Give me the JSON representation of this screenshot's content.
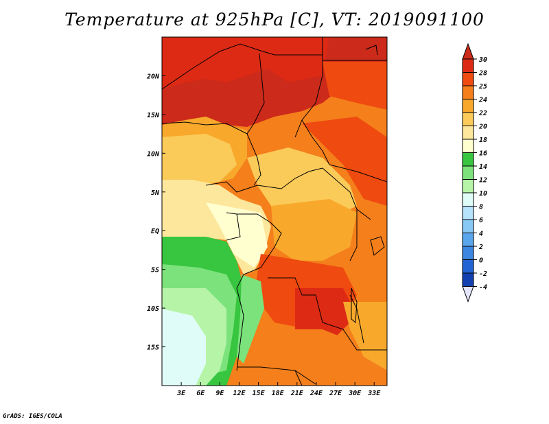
{
  "title": "Temperature at 925hPa [C], VT: 2019091100",
  "footer": "GrADS: IGES/COLA",
  "map": {
    "x_ticks": [
      "3E",
      "6E",
      "9E",
      "12E",
      "15E",
      "18E",
      "21E",
      "24E",
      "27E",
      "30E",
      "33E"
    ],
    "y_ticks": [
      "20N",
      "15N",
      "10N",
      "5N",
      "EQ",
      "5S",
      "10S",
      "15S"
    ],
    "lon_range": [
      0,
      35
    ],
    "lat_range": [
      -20,
      25
    ]
  },
  "colorbar": {
    "labels": [
      "30",
      "28",
      "25",
      "24",
      "22",
      "20",
      "18",
      "16",
      "14",
      "12",
      "10",
      "8",
      "6",
      "4",
      "2",
      "0",
      "-2",
      "-4"
    ],
    "colors": {
      "above_30": "#cc2a1a",
      "28_30": "#dd2a14",
      "25_28": "#ef4a0f",
      "24_25": "#f47f1b",
      "22_24": "#f8a92c",
      "20_22": "#fbcb5a",
      "18_20": "#fde79c",
      "16_18": "#ffffd0",
      "14_16": "#38c540",
      "12_14": "#7ce37c",
      "10_12": "#b6f4a8",
      "8_10": "#e0fcf8",
      "6_8": "#b6e4fc",
      "4_6": "#88c8f4",
      "2_4": "#5aa6ec",
      "0_2": "#3a86e0",
      "neg2_0": "#2264d4",
      "neg4_neg2": "#1240b0",
      "below_neg4": "#0c1c84",
      "bottom_arrow": "#e4e4fc"
    }
  }
}
